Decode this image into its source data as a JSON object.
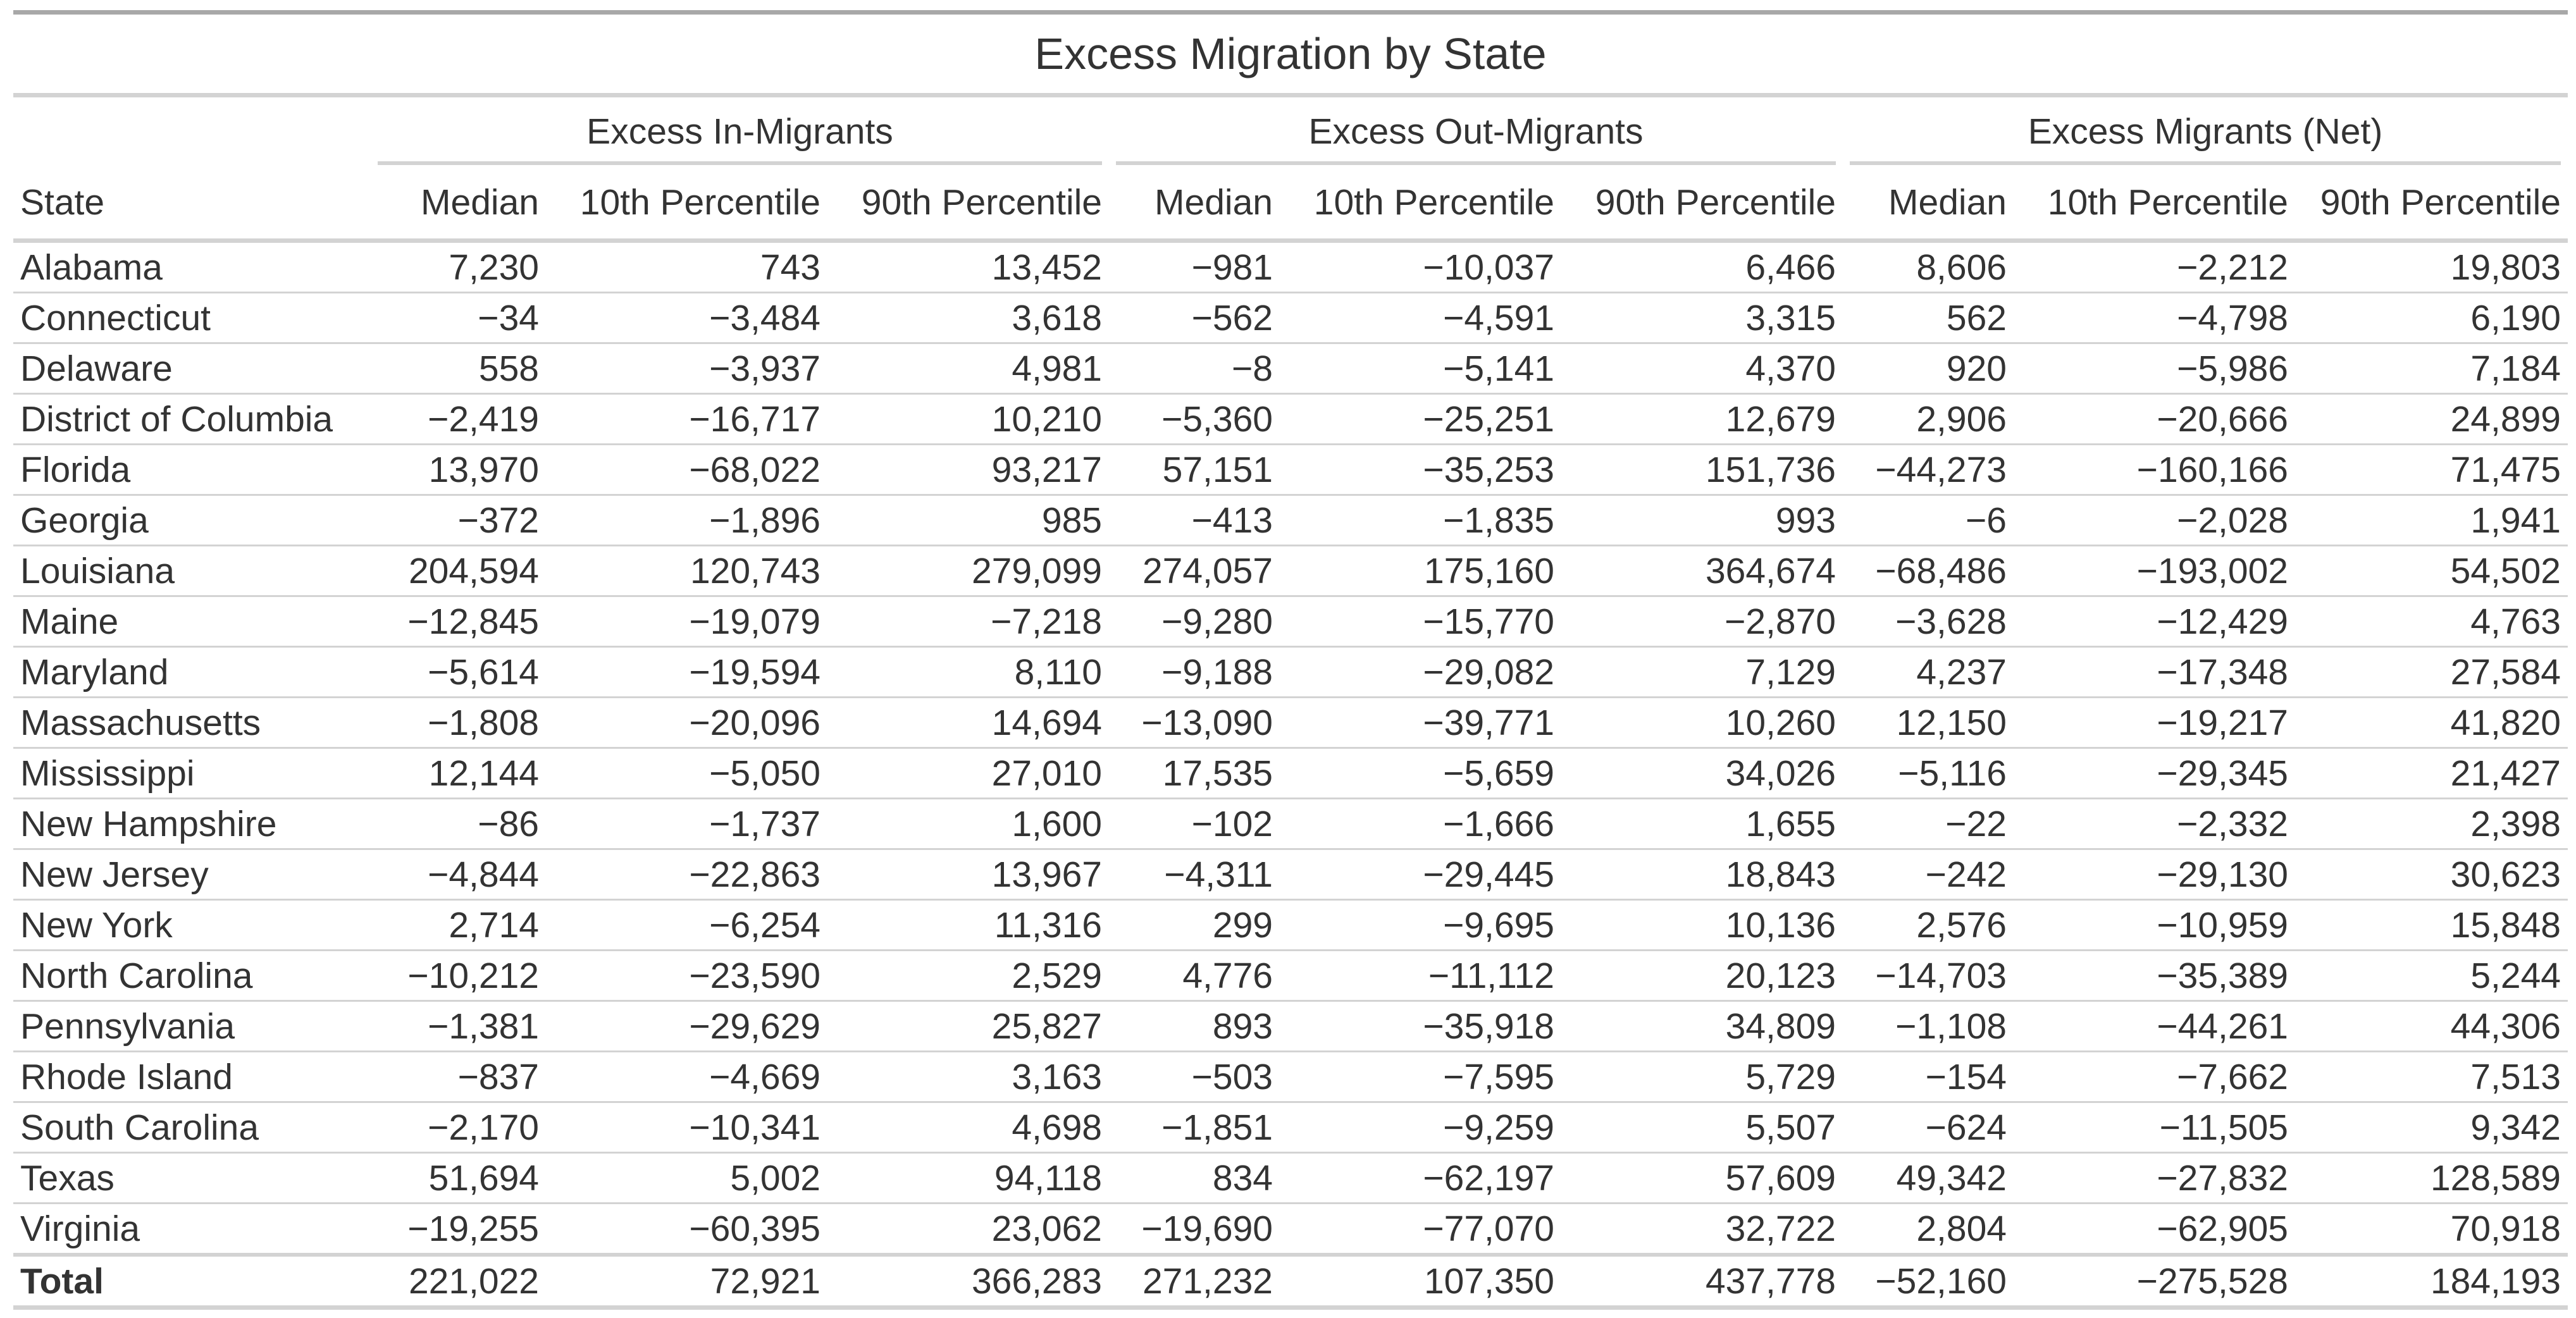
{
  "title": "Excess Migration by State",
  "spanners": [
    "Excess In-Migrants",
    "Excess Out-Migrants",
    "Excess Migrants (Net)"
  ],
  "columns": [
    "State",
    "Median",
    "10th Percentile",
    "90th Percentile",
    "Median",
    "10th Percentile",
    "90th Percentile",
    "Median",
    "10th Percentile",
    "90th Percentile"
  ],
  "rows": [
    [
      "Alabama",
      "7,230",
      "743",
      "13,452",
      "−981",
      "−10,037",
      "6,466",
      "8,606",
      "−2,212",
      "19,803"
    ],
    [
      "Connecticut",
      "−34",
      "−3,484",
      "3,618",
      "−562",
      "−4,591",
      "3,315",
      "562",
      "−4,798",
      "6,190"
    ],
    [
      "Delaware",
      "558",
      "−3,937",
      "4,981",
      "−8",
      "−5,141",
      "4,370",
      "920",
      "−5,986",
      "7,184"
    ],
    [
      "District of Columbia",
      "−2,419",
      "−16,717",
      "10,210",
      "−5,360",
      "−25,251",
      "12,679",
      "2,906",
      "−20,666",
      "24,899"
    ],
    [
      "Florida",
      "13,970",
      "−68,022",
      "93,217",
      "57,151",
      "−35,253",
      "151,736",
      "−44,273",
      "−160,166",
      "71,475"
    ],
    [
      "Georgia",
      "−372",
      "−1,896",
      "985",
      "−413",
      "−1,835",
      "993",
      "−6",
      "−2,028",
      "1,941"
    ],
    [
      "Louisiana",
      "204,594",
      "120,743",
      "279,099",
      "274,057",
      "175,160",
      "364,674",
      "−68,486",
      "−193,002",
      "54,502"
    ],
    [
      "Maine",
      "−12,845",
      "−19,079",
      "−7,218",
      "−9,280",
      "−15,770",
      "−2,870",
      "−3,628",
      "−12,429",
      "4,763"
    ],
    [
      "Maryland",
      "−5,614",
      "−19,594",
      "8,110",
      "−9,188",
      "−29,082",
      "7,129",
      "4,237",
      "−17,348",
      "27,584"
    ],
    [
      "Massachusetts",
      "−1,808",
      "−20,096",
      "14,694",
      "−13,090",
      "−39,771",
      "10,260",
      "12,150",
      "−19,217",
      "41,820"
    ],
    [
      "Mississippi",
      "12,144",
      "−5,050",
      "27,010",
      "17,535",
      "−5,659",
      "34,026",
      "−5,116",
      "−29,345",
      "21,427"
    ],
    [
      "New Hampshire",
      "−86",
      "−1,737",
      "1,600",
      "−102",
      "−1,666",
      "1,655",
      "−22",
      "−2,332",
      "2,398"
    ],
    [
      "New Jersey",
      "−4,844",
      "−22,863",
      "13,967",
      "−4,311",
      "−29,445",
      "18,843",
      "−242",
      "−29,130",
      "30,623"
    ],
    [
      "New York",
      "2,714",
      "−6,254",
      "11,316",
      "299",
      "−9,695",
      "10,136",
      "2,576",
      "−10,959",
      "15,848"
    ],
    [
      "North Carolina",
      "−10,212",
      "−23,590",
      "2,529",
      "4,776",
      "−11,112",
      "20,123",
      "−14,703",
      "−35,389",
      "5,244"
    ],
    [
      "Pennsylvania",
      "−1,381",
      "−29,629",
      "25,827",
      "893",
      "−35,918",
      "34,809",
      "−1,108",
      "−44,261",
      "44,306"
    ],
    [
      "Rhode Island",
      "−837",
      "−4,669",
      "3,163",
      "−503",
      "−7,595",
      "5,729",
      "−154",
      "−7,662",
      "7,513"
    ],
    [
      "South Carolina",
      "−2,170",
      "−10,341",
      "4,698",
      "−1,851",
      "−9,259",
      "5,507",
      "−624",
      "−11,505",
      "9,342"
    ],
    [
      "Texas",
      "51,694",
      "5,002",
      "94,118",
      "834",
      "−62,197",
      "57,609",
      "49,342",
      "−27,832",
      "128,589"
    ],
    [
      "Virginia",
      "−19,255",
      "−60,395",
      "23,062",
      "−19,690",
      "−77,070",
      "32,722",
      "2,804",
      "−62,905",
      "70,918"
    ]
  ],
  "total_row": [
    "Total",
    "221,022",
    "72,921",
    "366,283",
    "271,232",
    "107,350",
    "437,778",
    "−52,160",
    "−275,528",
    "184,193"
  ]
}
